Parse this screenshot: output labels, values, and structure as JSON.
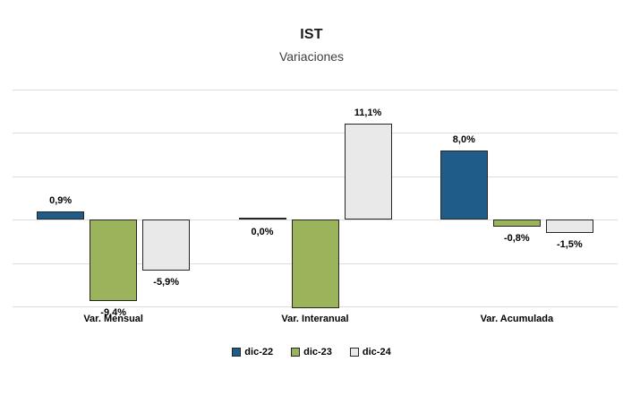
{
  "header": {
    "title": "IST",
    "subtitle": "Variaciones"
  },
  "chart_data": {
    "type": "bar",
    "title": "IST",
    "subtitle": "Variaciones",
    "categories": [
      "Var. Mensual",
      "Var. Interanual",
      "Var. Acumulada"
    ],
    "series": [
      {
        "name": "dic-22",
        "color": "#1F5C8A",
        "values": [
          0.9,
          0.0,
          8.0
        ],
        "labels": [
          "0,9%",
          "0,0%",
          "8,0%"
        ]
      },
      {
        "name": "dic-23",
        "color": "#9BB45C",
        "values": [
          -9.4,
          -10.2,
          -0.8
        ],
        "labels": [
          "-9,4%",
          "",
          "-0,8%"
        ]
      },
      {
        "name": "dic-24",
        "color": "#E9E9E9",
        "values": [
          -5.9,
          11.1,
          -1.5
        ],
        "labels": [
          "-5,9%",
          "11,1%",
          "-1,5%"
        ]
      }
    ],
    "ylim": [
      -10,
      15
    ],
    "grid_step": 5,
    "grid": true,
    "y_axis_tick_labels_visible": false,
    "legend_position": "bottom",
    "note": "dic-23 bar in Var. Interanual is clipped at the axis minimum and shows no data label"
  },
  "colors": {
    "background": "#FFFFFF",
    "gridline": "#DCDCDC",
    "bar_border": "#262626",
    "label_text": "#000000",
    "title_text": "#1A1A1A",
    "subtitle_text": "#3F3F3F"
  }
}
